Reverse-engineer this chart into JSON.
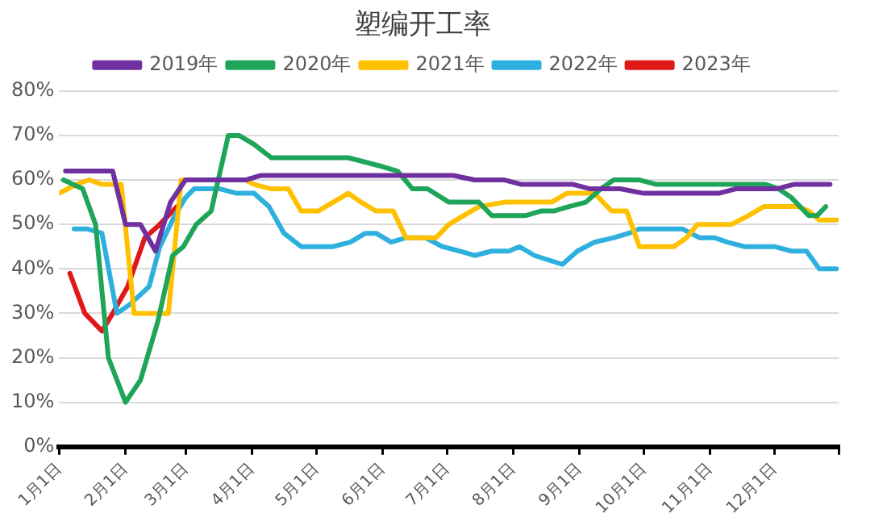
{
  "chart_data": {
    "type": "line",
    "title": "塑编开工率",
    "xlim": [
      "--01-01",
      "--12-31"
    ],
    "xticks": [
      {
        "value": "--01-01",
        "label": "1月1日"
      },
      {
        "value": "--02-01",
        "label": "2月1日"
      },
      {
        "value": "--03-01",
        "label": "3月1日"
      },
      {
        "value": "--04-01",
        "label": "4月1日"
      },
      {
        "value": "--05-01",
        "label": "5月1日"
      },
      {
        "value": "--06-01",
        "label": "6月1日"
      },
      {
        "value": "--07-01",
        "label": "7月1日"
      },
      {
        "value": "--08-01",
        "label": "8月1日"
      },
      {
        "value": "--09-01",
        "label": "9月1日"
      },
      {
        "value": "--10-01",
        "label": "10月1日"
      },
      {
        "value": "--11-01",
        "label": "11月1日"
      },
      {
        "value": "--12-01",
        "label": "12月1日"
      },
      {
        "value": "--12-31",
        "label": null
      }
    ],
    "ylim": [
      0,
      80
    ],
    "yticks": [
      {
        "value": 0,
        "label": "0%"
      },
      {
        "value": 10,
        "label": "10%"
      },
      {
        "value": 20,
        "label": "20%"
      },
      {
        "value": 30,
        "label": "30%"
      },
      {
        "value": 40,
        "label": "40%"
      },
      {
        "value": 50,
        "label": "50%"
      },
      {
        "value": 60,
        "label": "60%"
      },
      {
        "value": 70,
        "label": "70%"
      },
      {
        "value": 80,
        "label": "80%"
      }
    ],
    "grid": "y",
    "legend": "top",
    "marker": "none",
    "line_style": "solid",
    "series": [
      {
        "name": "2019年",
        "color": "#7030a0",
        "x": [
          "--01-04",
          "--01-26",
          "--02-01",
          "--02-08",
          "--02-15",
          "--02-22",
          "--03-01",
          "--03-29",
          "--04-05",
          "--07-04",
          "--07-14",
          "--07-28",
          "--08-05",
          "--08-29",
          "--09-06",
          "--09-20",
          "--10-01",
          "--11-05",
          "--11-13",
          "--12-02",
          "--12-10",
          "--12-27"
        ],
        "values": [
          62,
          62,
          50,
          50,
          44,
          55,
          60,
          60,
          61,
          61,
          60,
          60,
          59,
          59,
          58,
          58,
          57,
          57,
          58,
          58,
          59,
          59
        ]
      },
      {
        "name": "2020年",
        "color": "#1fa55a",
        "x": [
          "--01-03",
          "--01-12",
          "--01-18",
          "--01-24",
          "--02-01",
          "--02-08",
          "--02-16",
          "--02-23",
          "--02-28",
          "--03-06",
          "--03-13",
          "--03-21",
          "--03-26",
          "--04-02",
          "--04-10",
          "--05-16",
          "--05-24",
          "--06-01",
          "--06-08",
          "--06-15",
          "--06-22",
          "--07-02",
          "--07-16",
          "--07-22",
          "--08-07",
          "--08-14",
          "--08-20",
          "--08-27",
          "--09-04",
          "--09-11",
          "--09-17",
          "--09-29",
          "--10-07",
          "--11-27",
          "--12-03",
          "--12-09",
          "--12-17",
          "--12-21",
          "--12-25"
        ],
        "values": [
          60,
          58,
          50,
          20,
          10,
          15,
          28,
          43,
          45,
          50,
          53,
          70,
          70,
          68,
          65,
          65,
          64,
          63,
          62,
          58,
          58,
          55,
          55,
          52,
          52,
          53,
          53,
          54,
          55,
          58,
          60,
          60,
          59,
          59,
          58,
          56,
          52,
          52,
          54
        ]
      },
      {
        "name": "2021年",
        "color": "#ffc000",
        "x": [
          "--01-01",
          "--01-09",
          "--01-15",
          "--01-21",
          "--01-30",
          "--02-05",
          "--02-21",
          "--02-27",
          "--03-29",
          "--04-02",
          "--04-10",
          "--04-18",
          "--04-24",
          "--05-02",
          "--05-09",
          "--05-16",
          "--05-22",
          "--05-29",
          "--06-06",
          "--06-12",
          "--06-26",
          "--07-02",
          "--07-09",
          "--07-16",
          "--07-28",
          "--08-19",
          "--08-26",
          "--09-08",
          "--09-16",
          "--09-23",
          "--09-29",
          "--10-15",
          "--10-21",
          "--10-26",
          "--11-11",
          "--11-19",
          "--11-26",
          "--12-12",
          "--12-17",
          "--12-22",
          "--12-30"
        ],
        "values": [
          57,
          59,
          60,
          59,
          59,
          30,
          30,
          60,
          60,
          59,
          58,
          58,
          53,
          53,
          55,
          57,
          55,
          53,
          53,
          47,
          47,
          50,
          52,
          54,
          55,
          55,
          57,
          57,
          53,
          53,
          45,
          45,
          47,
          50,
          50,
          52,
          54,
          54,
          53,
          51,
          51
        ]
      },
      {
        "name": "2022年",
        "color": "#2eb0de",
        "x": [
          "--01-08",
          "--01-14",
          "--01-21",
          "--01-28",
          "--02-03",
          "--02-12",
          "--02-17",
          "--02-24",
          "--03-01",
          "--03-05",
          "--03-17",
          "--03-25",
          "--04-02",
          "--04-09",
          "--04-16",
          "--04-24",
          "--05-09",
          "--05-17",
          "--05-24",
          "--05-29",
          "--06-05",
          "--06-12",
          "--06-21",
          "--06-29",
          "--07-07",
          "--07-14",
          "--07-22",
          "--07-30",
          "--08-04",
          "--08-11",
          "--08-24",
          "--08-31",
          "--09-08",
          "--09-17",
          "--09-24",
          "--09-29",
          "--10-19",
          "--10-27",
          "--11-03",
          "--11-09",
          "--11-17",
          "--12-01",
          "--12-09",
          "--12-16",
          "--12-22",
          "--12-30"
        ],
        "values": [
          49,
          49,
          48,
          30,
          32,
          36,
          45,
          52,
          56,
          58,
          58,
          57,
          57,
          54,
          48,
          45,
          45,
          46,
          48,
          48,
          46,
          47,
          47,
          45,
          44,
          43,
          44,
          44,
          45,
          43,
          41,
          44,
          46,
          47,
          48,
          49,
          49,
          47,
          47,
          46,
          45,
          45,
          44,
          44,
          40,
          40
        ]
      },
      {
        "name": "2023年",
        "color": "#e01818",
        "x": [
          "--01-06",
          "--01-13",
          "--01-21",
          "--01-26",
          "--02-02",
          "--02-10",
          "--02-17",
          "--02-25"
        ],
        "values": [
          39,
          30,
          26,
          30,
          36,
          47,
          50,
          54
        ]
      }
    ]
  }
}
